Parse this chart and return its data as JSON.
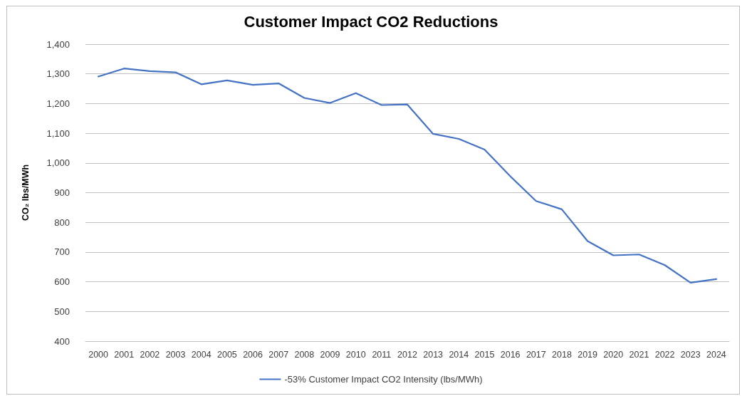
{
  "chart_data": {
    "type": "line",
    "title": "Customer Impact CO2 Reductions",
    "ylabel": "CO₂ lbs/MWh",
    "categories": [
      "2000",
      "2001",
      "2002",
      "2003",
      "2004",
      "2005",
      "2006",
      "2007",
      "2008",
      "2009",
      "2010",
      "2011",
      "2012",
      "2013",
      "2014",
      "2015",
      "2016",
      "2017",
      "2018",
      "2019",
      "2020",
      "2021",
      "2022",
      "2023",
      "2024"
    ],
    "series": [
      {
        "name": "-53% Customer Impact CO2 Intensity (lbs/MWh)",
        "color": "#4472c4",
        "values": [
          1291,
          1318,
          1309,
          1305,
          1265,
          1278,
          1263,
          1268,
          1219,
          1202,
          1235,
          1195,
          1197,
          1098,
          1081,
          1045,
          955,
          872,
          844,
          737,
          689,
          692,
          656,
          597,
          609
        ]
      }
    ],
    "ylim": [
      400,
      1400
    ],
    "yticks": [
      400,
      500,
      600,
      700,
      800,
      900,
      {
        "value": 1000,
        "label": "1,000"
      },
      {
        "value": 1100,
        "label": "1,100"
      },
      {
        "value": 1200,
        "label": "1,200"
      },
      {
        "value": 1300,
        "label": "1,300"
      },
      {
        "value": 1400,
        "label": "1,400"
      }
    ],
    "grid": "y",
    "legend": "bottom",
    "marker": "none",
    "line_style": "solid"
  }
}
